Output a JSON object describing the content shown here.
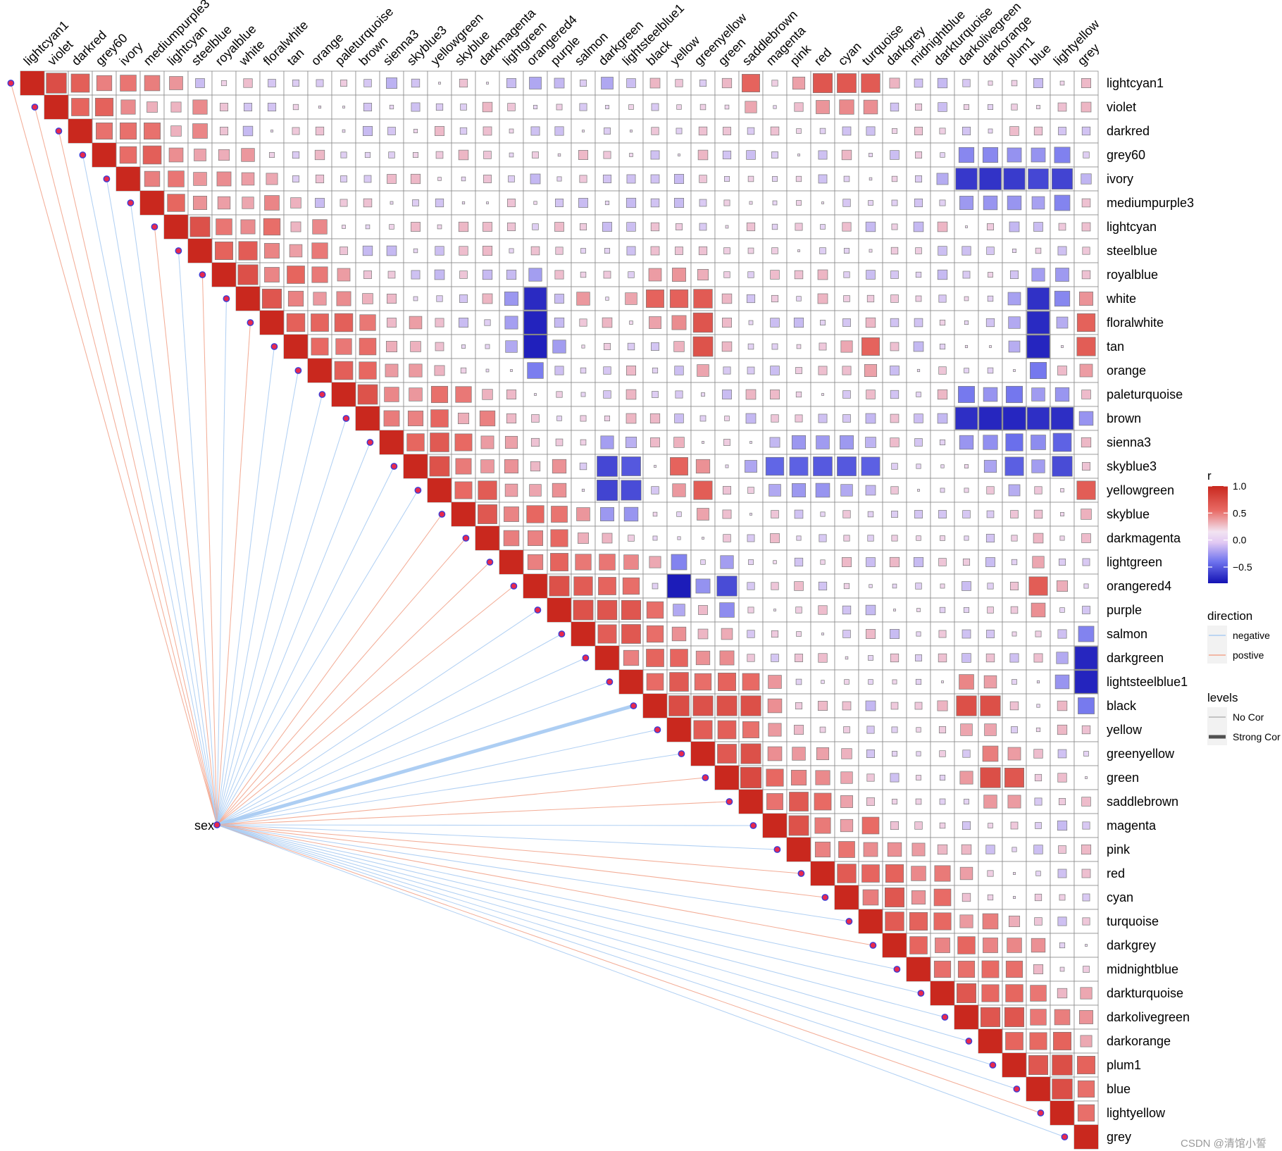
{
  "chart_data": {
    "type": "heatmap",
    "variables": [
      "lightcyan1",
      "violet",
      "darkred",
      "grey60",
      "ivory",
      "mediumpurple3",
      "lightcyan",
      "steelblue",
      "royalblue",
      "white",
      "floralwhite",
      "tan",
      "orange",
      "paleturquoise",
      "brown",
      "sienna3",
      "skyblue3",
      "yellowgreen",
      "skyblue",
      "darkmagenta",
      "lightgreen",
      "orangered4",
      "purple",
      "salmon",
      "darkgreen",
      "lightsteelblue1",
      "black",
      "yellow",
      "greenyellow",
      "green",
      "saddlebrown",
      "magenta",
      "pink",
      "red",
      "cyan",
      "turquoise",
      "darkgrey",
      "midnightblue",
      "darkturquoise",
      "darkolivegreen",
      "darkorange",
      "plum1",
      "blue",
      "lightyellow",
      "grey"
    ],
    "trait": "sex",
    "cells_shown": "upper triangle including diagonal",
    "diagonal_value": 1.0,
    "value_encoding": "fill colour and square size both encode r",
    "anchor_rows": {
      "lightcyan1": {
        "ivory": 0.45,
        "sienna3": -0.2,
        "yellowgreen": 0.0,
        "orangered4": -0.25,
        "darkgreen": -0.25,
        "saddlebrown": 0.55,
        "red": 0.65,
        "cyan": 0.65,
        "turquoise": 0.6
      },
      "ivory": {
        "darkolivegreen": -0.8,
        "darkorange": -0.8,
        "plum1": -0.9,
        "blue": -0.6,
        "lightyellow": -0.8
      },
      "white": {
        "orangered4": -0.85,
        "salmon": 0.3,
        "black": 0.55,
        "yellow": 0.55,
        "greenyellow": 0.6,
        "blue": -0.8,
        "lightyellow": -0.75,
        "grey": 0.45
      },
      "floralwhite": {
        "orangered4": -0.9,
        "greenyellow": 0.65,
        "blue": -0.9,
        "grey": 0.6
      },
      "tan": {
        "orangered4": -0.95,
        "greenyellow": 0.7,
        "turquoise": 0.55,
        "blue": -0.9,
        "grey": 0.6
      },
      "brown": {
        "darkolivegreen": -0.85,
        "darkorange": -0.85,
        "plum1": -1.0,
        "blue": -0.75,
        "lightyellow": -0.9
      },
      "skyblue3": {
        "darkgreen": -0.65,
        "lightsteelblue1": -0.55,
        "yellow": 0.55,
        "magenta": -0.55,
        "pink": -0.6,
        "red": -0.6,
        "cyan": -0.7,
        "turquoise": -0.55,
        "plum1": -0.6,
        "lightyellow": -0.7
      },
      "yellowgreen": {
        "darkgreen": -0.85,
        "lightsteelblue1": -0.7,
        "greenyellow": 0.6,
        "grey": 0.6
      },
      "orangered4": {
        "yellow": -0.95,
        "green": -0.7,
        "blue": 0.6
      },
      "purple": {
        "salmon": 0.7,
        "darkgreen": 0.65,
        "lightsteelblue1": 0.65
      },
      "black": {
        "yellow": 0.75,
        "greenyellow": 0.65,
        "green": 0.7,
        "saddlebrown": 0.7,
        "darkolivegreen": 0.7,
        "darkorange": 0.7
      },
      "green": {
        "saddlebrown": 0.75,
        "darkorange": 0.75,
        "plum1": 0.6
      },
      "lightsteelblue1": {
        "grey": -0.95
      },
      "darkgreen": {
        "grey": -0.85
      },
      "darkolivegreen": {
        "darkorange": 0.65,
        "plum1": 0.65
      },
      "plum1": {
        "blue": 0.6,
        "lightyellow": 0.75
      }
    },
    "sex_links": [
      {
        "module": "lightcyan1",
        "direction": "postive",
        "strength": "No Cor"
      },
      {
        "module": "violet",
        "direction": "postive",
        "strength": "No Cor"
      },
      {
        "module": "darkred",
        "direction": "postive",
        "strength": "No Cor"
      },
      {
        "module": "grey60",
        "direction": "negative",
        "strength": "No Cor"
      },
      {
        "module": "ivory",
        "direction": "negative",
        "strength": "No Cor"
      },
      {
        "module": "mediumpurple3",
        "direction": "negative",
        "strength": "No Cor"
      },
      {
        "module": "lightcyan",
        "direction": "postive",
        "strength": "No Cor"
      },
      {
        "module": "steelblue",
        "direction": "negative",
        "strength": "No Cor"
      },
      {
        "module": "royalblue",
        "direction": "postive",
        "strength": "No Cor"
      },
      {
        "module": "white",
        "direction": "negative",
        "strength": "No Cor"
      },
      {
        "module": "floralwhite",
        "direction": "postive",
        "strength": "No Cor"
      },
      {
        "module": "tan",
        "direction": "negative",
        "strength": "No Cor"
      },
      {
        "module": "orange",
        "direction": "negative",
        "strength": "No Cor"
      },
      {
        "module": "paleturquoise",
        "direction": "negative",
        "strength": "No Cor"
      },
      {
        "module": "brown",
        "direction": "negative",
        "strength": "No Cor"
      },
      {
        "module": "sienna3",
        "direction": "negative",
        "strength": "No Cor"
      },
      {
        "module": "skyblue3",
        "direction": "negative",
        "strength": "No Cor"
      },
      {
        "module": "yellowgreen",
        "direction": "negative",
        "strength": "No Cor"
      },
      {
        "module": "skyblue",
        "direction": "postive",
        "strength": "No Cor"
      },
      {
        "module": "darkmagenta",
        "direction": "postive",
        "strength": "No Cor"
      },
      {
        "module": "lightgreen",
        "direction": "postive",
        "strength": "No Cor"
      },
      {
        "module": "orangered4",
        "direction": "postive",
        "strength": "No Cor"
      },
      {
        "module": "purple",
        "direction": "negative",
        "strength": "No Cor"
      },
      {
        "module": "salmon",
        "direction": "negative",
        "strength": "No Cor"
      },
      {
        "module": "darkgreen",
        "direction": "negative",
        "strength": "No Cor"
      },
      {
        "module": "lightsteelblue1",
        "direction": "negative",
        "strength": "No Cor"
      },
      {
        "module": "black",
        "direction": "negative",
        "strength": "Strong Cor"
      },
      {
        "module": "yellow",
        "direction": "negative",
        "strength": "No Cor"
      },
      {
        "module": "greenyellow",
        "direction": "negative",
        "strength": "No Cor"
      },
      {
        "module": "green",
        "direction": "postive",
        "strength": "No Cor"
      },
      {
        "module": "saddlebrown",
        "direction": "postive",
        "strength": "No Cor"
      },
      {
        "module": "magenta",
        "direction": "negative",
        "strength": "No Cor"
      },
      {
        "module": "pink",
        "direction": "negative",
        "strength": "No Cor"
      },
      {
        "module": "red",
        "direction": "postive",
        "strength": "No Cor"
      },
      {
        "module": "cyan",
        "direction": "postive",
        "strength": "No Cor"
      },
      {
        "module": "turquoise",
        "direction": "negative",
        "strength": "No Cor"
      },
      {
        "module": "darkgrey",
        "direction": "postive",
        "strength": "No Cor"
      },
      {
        "module": "midnightblue",
        "direction": "negative",
        "strength": "No Cor"
      },
      {
        "module": "darkturquoise",
        "direction": "negative",
        "strength": "No Cor"
      },
      {
        "module": "darkolivegreen",
        "direction": "negative",
        "strength": "No Cor"
      },
      {
        "module": "darkorange",
        "direction": "negative",
        "strength": "No Cor"
      },
      {
        "module": "plum1",
        "direction": "negative",
        "strength": "No Cor"
      },
      {
        "module": "blue",
        "direction": "negative",
        "strength": "No Cor"
      },
      {
        "module": "lightyellow",
        "direction": "postive",
        "strength": "No Cor"
      },
      {
        "module": "grey",
        "direction": "negative",
        "strength": "No Cor"
      }
    ],
    "legend": {
      "r": {
        "title": "r",
        "ticks": [
          "1.0",
          "0.5",
          "0.0",
          "−0.5"
        ],
        "tick_values": [
          1.0,
          0.5,
          0.0,
          -0.5
        ],
        "range": [
          -0.8,
          1.0
        ]
      },
      "direction": {
        "title": "direction",
        "items": [
          {
            "label": "negative",
            "color": "#a9cbf2"
          },
          {
            "label": "postive",
            "color": "#f2a48c"
          }
        ]
      },
      "levels": {
        "title": "levels",
        "items": [
          {
            "label": "No Cor"
          },
          {
            "label": "Strong Cor"
          }
        ]
      }
    },
    "colors": {
      "strong_pos": "#c9281e",
      "mid_pos": "#e86a64",
      "neutral": "#f0dcf4",
      "mid_neg": "#6d72ee",
      "strong_neg": "#1312b3",
      "negative_link": "#a9cbf2",
      "postive_link": "#f2a48c",
      "node_fill": "#e8294d",
      "node_stroke": "#3b3bd6",
      "grid": "#8c8c8c"
    },
    "watermark": "CSDN @清馆小誓"
  }
}
